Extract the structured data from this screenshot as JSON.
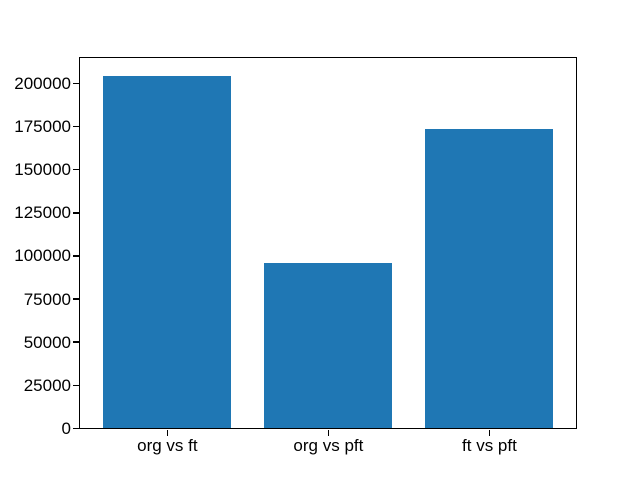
{
  "chart_data": {
    "type": "bar",
    "title": "",
    "xlabel": "",
    "ylabel": "",
    "categories": [
      "org vs ft",
      "org vs pft",
      "ft vs pft"
    ],
    "values": [
      204400,
      95600,
      173500
    ],
    "yticks": [
      0,
      25000,
      50000,
      75000,
      100000,
      125000,
      150000,
      175000,
      200000
    ],
    "ylim": [
      0,
      214600
    ],
    "bar_color": "#1f77b4",
    "axes_color": "#000000",
    "background_color": "#ffffff",
    "grid": false,
    "legend_position": "none",
    "bar_width_fraction": 0.8
  }
}
